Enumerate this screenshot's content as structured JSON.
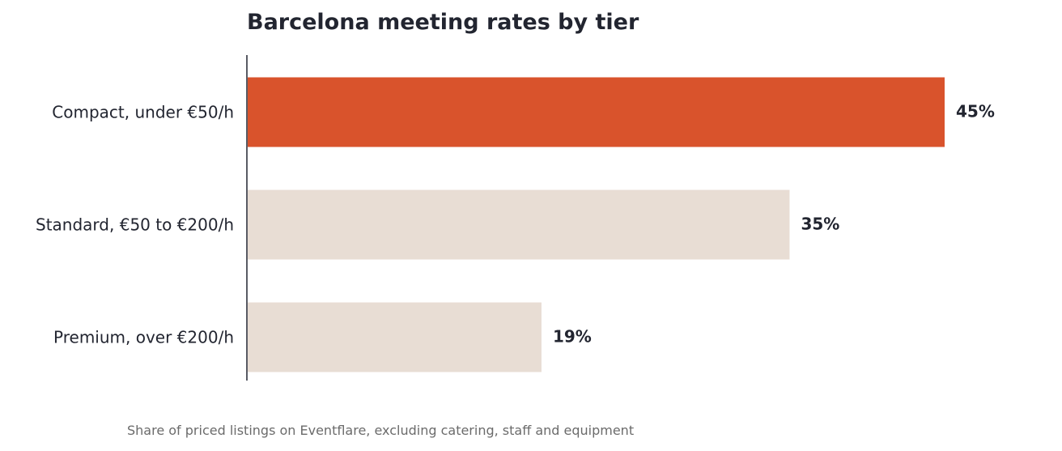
{
  "chart_data": {
    "type": "bar",
    "orientation": "horizontal",
    "title": "Barcelona meeting rates by tier",
    "caption": "Share of priced listings on Eventflare, excluding catering, staff and equipment",
    "categories": [
      "Compact, under €50/h",
      "Standard, €50 to €200/h",
      "Premium, over €200/h"
    ],
    "values": [
      45,
      35,
      19
    ],
    "value_labels": [
      "45%",
      "35%",
      "19%"
    ],
    "highlight_index": 0,
    "colors": {
      "highlight": "#d9532c",
      "default": "#e8ddd4",
      "text": "#222530",
      "axis": "#222530",
      "caption": "#6b6b6b"
    },
    "xlim": [
      0,
      45
    ],
    "grid": false,
    "legend": "none"
  }
}
